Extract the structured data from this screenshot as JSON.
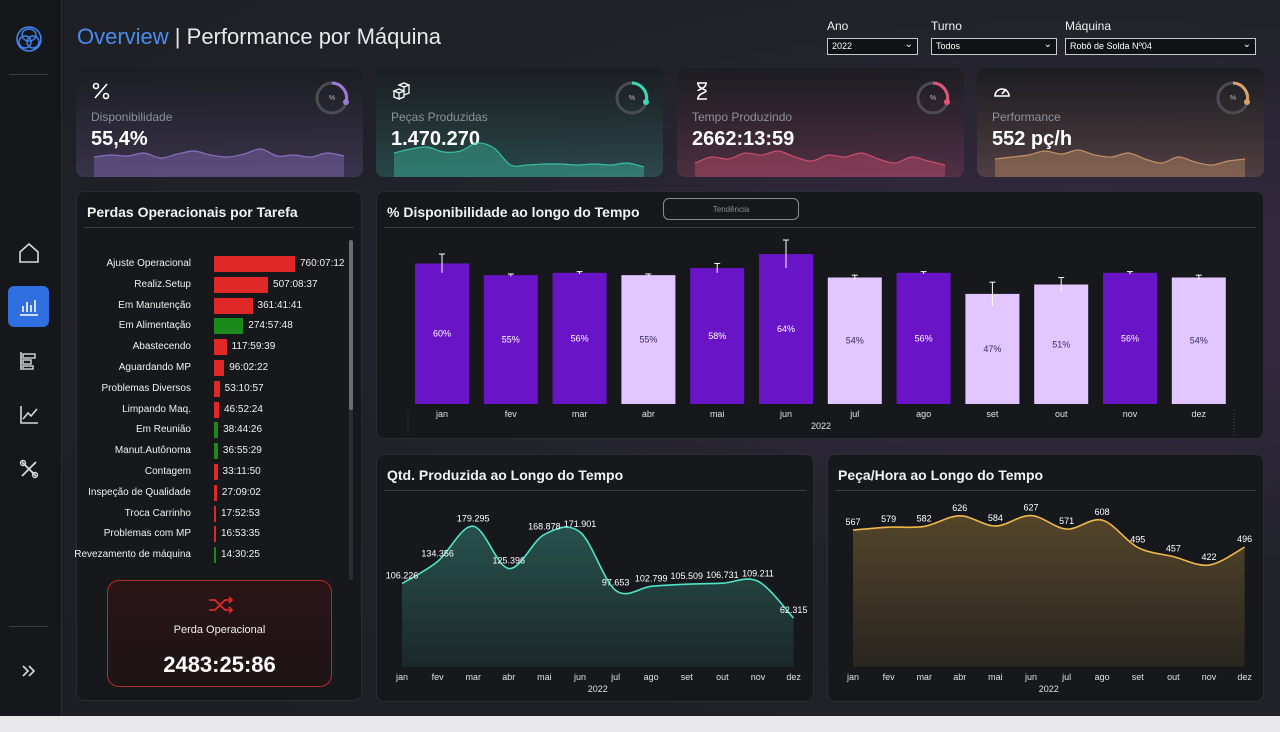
{
  "header": {
    "title_accent": "Overview",
    "title_sep": " | ",
    "title_main": "Performance por Máquina"
  },
  "filters": [
    {
      "label": "Ano",
      "value": "2022"
    },
    {
      "label": "Turno",
      "value": "Todos"
    },
    {
      "label": "Máquina",
      "value": "Robô de Solda Nº04"
    }
  ],
  "kpis": [
    {
      "label": "Disponibilidade",
      "value": "55,4%",
      "icon": "percent-icon",
      "ring_text": "%",
      "color": "#9b7bd6",
      "spark": [
        20,
        22,
        21,
        24,
        19,
        23,
        26,
        22,
        20,
        23,
        28,
        21,
        22,
        20,
        24,
        21
      ]
    },
    {
      "label": "Peças Produzidas",
      "value": "1.470.270",
      "icon": "boxes-icon",
      "ring_text": "%",
      "color": "#3fd6b6",
      "spark": [
        24,
        28,
        30,
        25,
        26,
        34,
        29,
        12,
        12,
        13,
        13,
        12,
        13,
        12,
        14,
        10
      ]
    },
    {
      "label": "Tempo Produzindo",
      "value": "2662:13:59",
      "icon": "hourglass-icon",
      "ring_text": "%",
      "color": "#e05577",
      "spark": [
        14,
        20,
        18,
        24,
        22,
        26,
        20,
        16,
        22,
        20,
        24,
        18,
        14,
        20,
        16,
        12
      ]
    },
    {
      "label": "Performance",
      "value": "552 pç/h",
      "icon": "speedometer-icon",
      "ring_text": "%",
      "color": "#d9a06a",
      "spark": [
        18,
        20,
        22,
        26,
        23,
        27,
        22,
        20,
        24,
        18,
        14,
        20,
        15,
        12,
        16,
        18
      ]
    }
  ],
  "losses": {
    "title": "Perdas Operacionais por Tarefa",
    "rows": [
      {
        "label": "Ajuste Operacional",
        "value": "760:07:12",
        "hours": 760.1,
        "color": "#e02828"
      },
      {
        "label": "Realiz.Setup",
        "value": "507:08:37",
        "hours": 507.1,
        "color": "#e02828"
      },
      {
        "label": "Em Manutenção",
        "value": "361:41:41",
        "hours": 361.7,
        "color": "#e02828"
      },
      {
        "label": "Em Alimentação",
        "value": "274:57:48",
        "hours": 275.0,
        "color": "#1b8a1b"
      },
      {
        "label": "Abastecendo",
        "value": "117:59:39",
        "hours": 118.0,
        "color": "#e02828"
      },
      {
        "label": "Aguardando MP",
        "value": "96:02:22",
        "hours": 96.0,
        "color": "#e02828"
      },
      {
        "label": "Problemas Diversos",
        "value": "53:10:57",
        "hours": 53.2,
        "color": "#e02828"
      },
      {
        "label": "Limpando Maq.",
        "value": "46:52:24",
        "hours": 46.9,
        "color": "#e02828"
      },
      {
        "label": "Em Reunião",
        "value": "38:44:26",
        "hours": 38.7,
        "color": "#1b8a1b"
      },
      {
        "label": "Manut.Autônoma",
        "value": "36:55:29",
        "hours": 36.9,
        "color": "#1b8a1b"
      },
      {
        "label": "Contagem",
        "value": "33:11:50",
        "hours": 33.2,
        "color": "#e02828"
      },
      {
        "label": "Inspeção de Qualidade",
        "value": "27:09:02",
        "hours": 27.2,
        "color": "#e02828"
      },
      {
        "label": "Troca Carrinho",
        "value": "17:52:53",
        "hours": 17.9,
        "color": "#e02828"
      },
      {
        "label": "Problemas com MP",
        "value": "16:53:35",
        "hours": 16.9,
        "color": "#e02828"
      },
      {
        "label": "Revezamento de máquina",
        "value": "14:30:25",
        "hours": 14.5,
        "color": "#1b8a1b"
      }
    ],
    "card_label": "Perda Operacional",
    "card_value": "2483:25:86"
  },
  "chart_data": [
    {
      "type": "bar",
      "title": "% Disponibilidade ao longo do Tempo",
      "button": "Tendência",
      "categories": [
        "jan",
        "fev",
        "mar",
        "abr",
        "mai",
        "jun",
        "jul",
        "ago",
        "set",
        "out",
        "nov",
        "dez"
      ],
      "values": [
        60,
        55,
        56,
        55,
        58,
        64,
        54,
        56,
        47,
        51,
        56,
        54
      ],
      "labels": [
        "60%",
        "55%",
        "56%",
        "55%",
        "58%",
        "64%",
        "54%",
        "56%",
        "47%",
        "51%",
        "56%",
        "54%"
      ],
      "errors": [
        4,
        0.5,
        0.5,
        0.5,
        2,
        6,
        1,
        0.5,
        5,
        3,
        0.5,
        1
      ],
      "bar_colors": [
        "#6a14c8",
        "#6a14c8",
        "#6a14c8",
        "#e2c6ff",
        "#6a14c8",
        "#6a14c8",
        "#e2c6ff",
        "#6a14c8",
        "#e2c6ff",
        "#e2c6ff",
        "#6a14c8",
        "#e2c6ff"
      ],
      "xlabel": "2022",
      "ylim": [
        0,
        70
      ]
    },
    {
      "type": "area",
      "title": "Qtd. Produzida ao Longo do Tempo",
      "categories": [
        "jan",
        "fev",
        "mar",
        "abr",
        "mai",
        "jun",
        "jul",
        "ago",
        "set",
        "out",
        "nov",
        "dez"
      ],
      "values": [
        106226,
        134356,
        179295,
        125396,
        168878,
        171901,
        97653,
        102799,
        105509,
        106731,
        109211,
        62315
      ],
      "labels": [
        "106.226",
        "134.356",
        "179.295",
        "125.396",
        "168.878",
        "171.901",
        "97.653",
        "102.799",
        "105.509",
        "106.731",
        "109.211",
        "62.315"
      ],
      "xlabel": "2022",
      "color": "#4fe3c8",
      "ylim": [
        0,
        200000
      ]
    },
    {
      "type": "area",
      "title": "Peça/Hora ao Longo do Tempo",
      "categories": [
        "jan",
        "fev",
        "mar",
        "abr",
        "mai",
        "jun",
        "jul",
        "ago",
        "set",
        "out",
        "nov",
        "dez"
      ],
      "values": [
        567,
        579,
        582,
        626,
        584,
        627,
        571,
        608,
        495,
        457,
        422,
        496
      ],
      "labels": [
        "567",
        "579",
        "582",
        "626",
        "584",
        "627",
        "571",
        "608",
        "495",
        "457",
        "422",
        "496"
      ],
      "xlabel": "2022",
      "color": "#f0b84a",
      "ylim": [
        0,
        650
      ]
    }
  ]
}
